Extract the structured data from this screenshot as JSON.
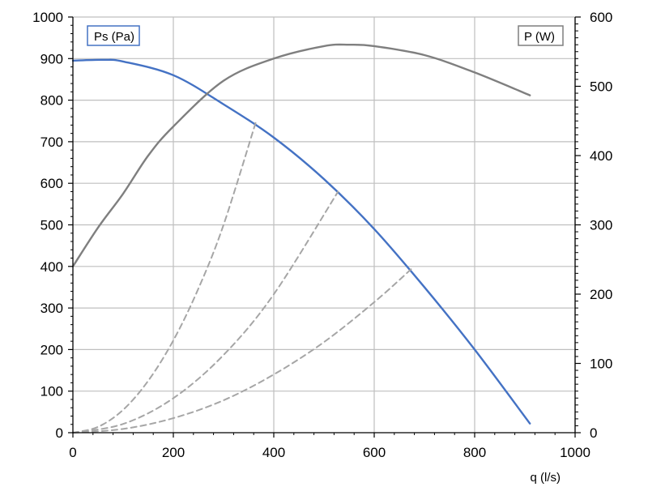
{
  "chart_data": {
    "type": "line",
    "xlabel": "q (l/s)",
    "xlim": [
      0,
      1000
    ],
    "x_ticks": [
      0,
      200,
      400,
      600,
      800,
      1000
    ],
    "y_left": {
      "lim": [
        0,
        1000
      ],
      "ticks": [
        0,
        100,
        200,
        300,
        400,
        500,
        600,
        700,
        800,
        900,
        1000
      ]
    },
    "y_right": {
      "lim": [
        0,
        600
      ],
      "ticks": [
        0,
        100,
        200,
        300,
        400,
        500,
        600
      ]
    },
    "grid": true,
    "legend": [
      {
        "text": "Ps (Pa)",
        "placement": "top-left",
        "color": "#4472C4"
      },
      {
        "text": "P (W)",
        "placement": "top-right",
        "color": "#7F7F7F"
      }
    ],
    "series": [
      {
        "axis": "left",
        "color": "#4472C4",
        "style": "solid",
        "x": [
          0,
          60,
          100,
          200,
          300,
          400,
          500,
          600,
          700,
          800,
          910
        ],
        "y": [
          895,
          897,
          893,
          860,
          790,
          710,
          610,
          490,
          350,
          200,
          22
        ]
      },
      {
        "axis": "right",
        "color": "#7F7F7F",
        "style": "solid",
        "x": [
          0,
          50,
          100,
          150,
          200,
          300,
          400,
          500,
          550,
          600,
          700,
          800,
          910
        ],
        "y": [
          240,
          296,
          345,
          400,
          442,
          508,
          540,
          558,
          560,
          558,
          545,
          520,
          487
        ]
      },
      {
        "axis": "left",
        "color": "#A6A6A6",
        "style": "dashed",
        "x": [
          0,
          50,
          100,
          150,
          200,
          250,
          300,
          365
        ],
        "y": [
          0,
          14,
          55,
          125,
          222,
          347,
          500,
          750
        ]
      },
      {
        "axis": "left",
        "color": "#A6A6A6",
        "style": "dashed",
        "x": [
          0,
          100,
          200,
          300,
          400,
          528
        ],
        "y": [
          0,
          21,
          83,
          187,
          333,
          580
        ]
      },
      {
        "axis": "left",
        "color": "#A6A6A6",
        "style": "dashed",
        "x": [
          0,
          100,
          200,
          300,
          400,
          500,
          600,
          675
        ],
        "y": [
          0,
          9,
          35,
          78,
          140,
          218,
          314,
          395
        ]
      }
    ]
  }
}
